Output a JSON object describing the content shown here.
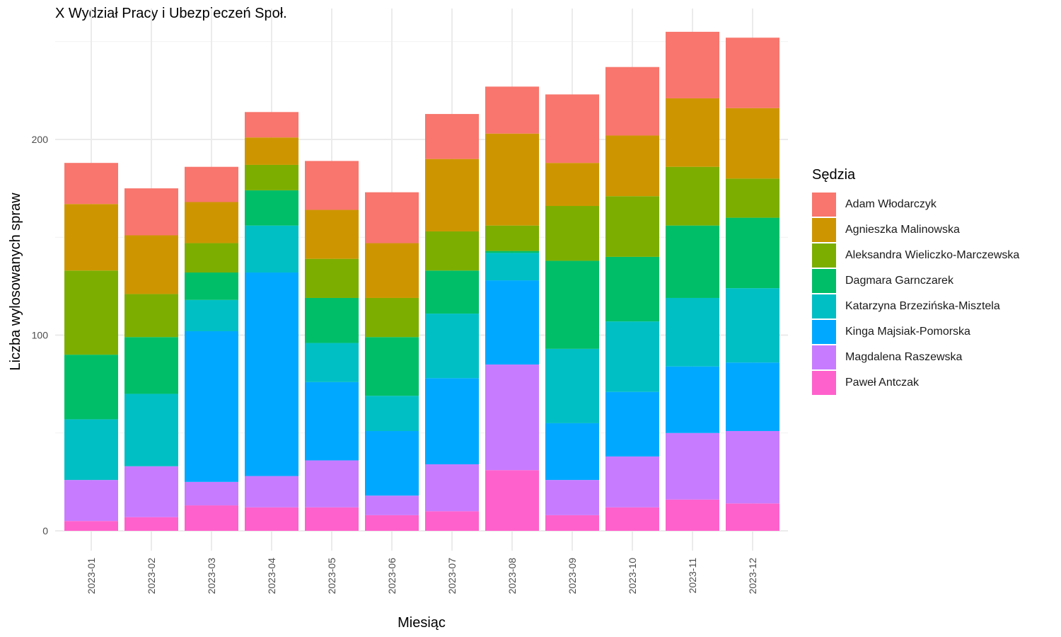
{
  "title": "X Wydział Pracy i Ubezpieczeń Społ.",
  "chart_data": {
    "type": "bar",
    "stacked": true,
    "xlabel": "Miesiąc",
    "ylabel": "Liczba wylosowanych spraw",
    "ylim": [
      0,
      255
    ],
    "yticks": [
      0,
      100,
      200
    ],
    "grid": true,
    "legend_title": "Sędzia",
    "legend_position": "right",
    "categories": [
      "2023-01",
      "2023-02",
      "2023-03",
      "2023-04",
      "2023-05",
      "2023-06",
      "2023-07",
      "2023-08",
      "2023-09",
      "2023-10",
      "2023-11",
      "2023-12"
    ],
    "series": [
      {
        "name": "Paweł Antczak",
        "color": "#FF61CC",
        "values": [
          5,
          7,
          13,
          12,
          12,
          8,
          10,
          31,
          8,
          12,
          16,
          14
        ]
      },
      {
        "name": "Magdalena Raszewska",
        "color": "#C77CFF",
        "values": [
          21,
          26,
          12,
          16,
          24,
          10,
          24,
          54,
          18,
          26,
          34,
          37
        ]
      },
      {
        "name": "Kinga Majsiak-Pomorska",
        "color": "#00A9FF",
        "values": [
          0,
          0,
          77,
          104,
          40,
          33,
          44,
          43,
          29,
          33,
          34,
          35
        ]
      },
      {
        "name": "Katarzyna Brzezińska-Misztela",
        "color": "#00BFC4",
        "values": [
          31,
          37,
          16,
          24,
          20,
          18,
          33,
          14,
          38,
          36,
          35,
          38
        ]
      },
      {
        "name": "Dagmara Garnczarek",
        "color": "#00BE67",
        "values": [
          33,
          29,
          14,
          18,
          23,
          30,
          22,
          1,
          45,
          33,
          37,
          36
        ]
      },
      {
        "name": "Aleksandra Wieliczko-Marczewska",
        "color": "#7CAE00",
        "values": [
          43,
          22,
          15,
          13,
          20,
          20,
          20,
          13,
          28,
          31,
          30,
          20
        ]
      },
      {
        "name": "Agnieszka Malinowska",
        "color": "#CD9600",
        "values": [
          34,
          30,
          21,
          14,
          25,
          28,
          37,
          47,
          22,
          31,
          35,
          36
        ]
      },
      {
        "name": "Adam Włodarczyk",
        "color": "#F8766D",
        "values": [
          21,
          24,
          18,
          13,
          25,
          26,
          23,
          24,
          35,
          35,
          34,
          36
        ]
      }
    ]
  }
}
